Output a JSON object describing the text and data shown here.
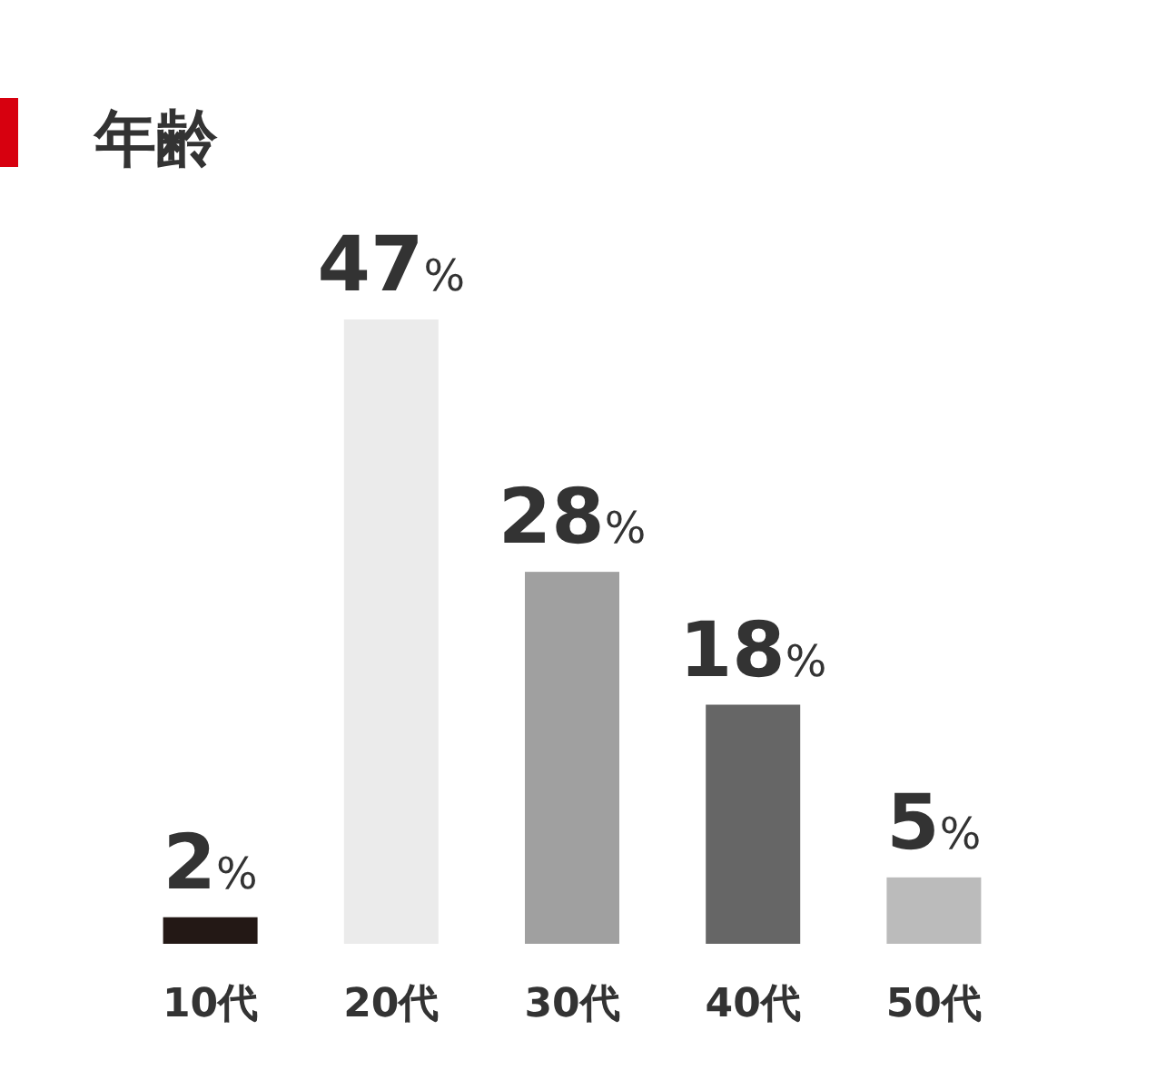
{
  "chart_data": {
    "type": "bar",
    "title": "年齢",
    "categories": [
      "10代",
      "20代",
      "30代",
      "40代",
      "50代"
    ],
    "values": [
      2,
      47,
      28,
      18,
      5
    ],
    "colors": [
      "#231815",
      "#ebebeb",
      "#a0a0a0",
      "#666666",
      "#bbbbbb"
    ],
    "value_labels": [
      "2%",
      "47%",
      "28%",
      "18%",
      "5%"
    ]
  }
}
